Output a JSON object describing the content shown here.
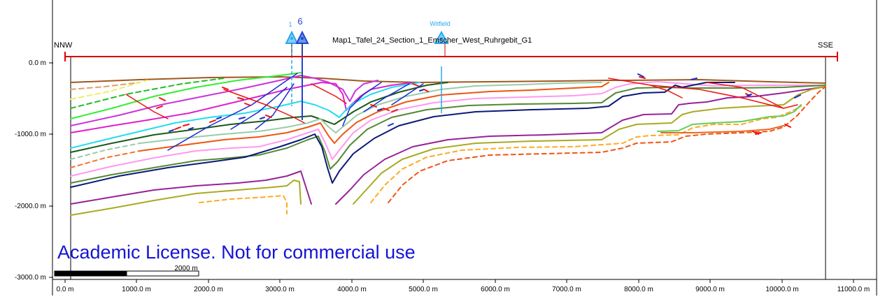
{
  "section": {
    "title": "Map1_Tafel_24_Section_1_Emscher_West_Ruhrgebit_G1",
    "left_label": "NNW",
    "right_label": "SSE"
  },
  "wells": [
    {
      "name": "1",
      "color": "#2aa9e8"
    },
    {
      "name": "6",
      "color": "#2244cc"
    },
    {
      "name": "Witfield",
      "color": "#2aa9e8"
    }
  ],
  "y_axis": {
    "ticks": [
      "0.0 m",
      "-1000.0 m",
      "-2000.0 m",
      "-3000.0 m"
    ]
  },
  "x_axis": {
    "ticks": [
      "0.0 m",
      "1000.0 m",
      "2000.0 m",
      "3000.0 m",
      "4000.0 m",
      "5000.0 m",
      "6000.0 m",
      "7000.0 m",
      "8000.0 m",
      "9000.0 m",
      "10000.0 m",
      "11000.0 m"
    ]
  },
  "scale_bar": {
    "label": "2000 m"
  },
  "license_text": "Academic License. Not for commercial use",
  "colors": {
    "section_line": "#dd0000",
    "license": "#1414d6",
    "fault_red": "#ee1111",
    "fault_blue": "#1a2bd0"
  }
}
